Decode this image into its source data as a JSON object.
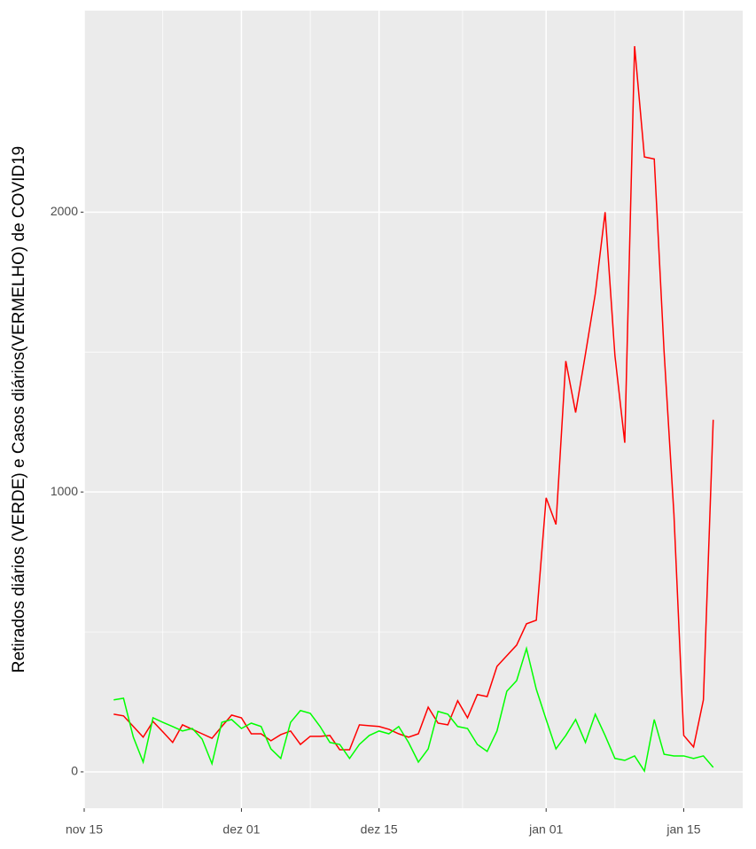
{
  "chart_data": {
    "type": "line",
    "y_label": "Retirados diários (VERDE) e Casos diários(VERMELHO) de COVID19",
    "x": [
      "11-18",
      "11-19",
      "11-20",
      "11-21",
      "11-22",
      "11-23",
      "11-24",
      "11-25",
      "11-26",
      "11-27",
      "11-28",
      "11-29",
      "11-30",
      "12-01",
      "12-02",
      "12-03",
      "12-04",
      "12-05",
      "12-06",
      "12-07",
      "12-08",
      "12-09",
      "12-10",
      "12-11",
      "12-12",
      "12-13",
      "12-14",
      "12-15",
      "12-16",
      "12-17",
      "12-18",
      "12-19",
      "12-20",
      "12-21",
      "12-22",
      "12-23",
      "12-24",
      "12-25",
      "12-26",
      "12-27",
      "12-28",
      "12-29",
      "12-30",
      "12-31",
      "01-01",
      "01-02",
      "01-03",
      "01-04",
      "01-05",
      "01-06",
      "01-07",
      "01-08",
      "01-09",
      "01-10",
      "01-11",
      "01-12",
      "01-13",
      "01-14",
      "01-15",
      "01-16",
      "01-17",
      "01-18"
    ],
    "series": [
      {
        "color": "#ff0000",
        "values": [
          206,
          200,
          162,
          124,
          180,
          143,
          105,
          168,
          152,
          136,
          120,
          162,
          203,
          193,
          136,
          136,
          111,
          133,
          146,
          98,
          127,
          127,
          130,
          79,
          79,
          168,
          165,
          162,
          152,
          136,
          124,
          136,
          231,
          174,
          168,
          254,
          193,
          276,
          269,
          377,
          415,
          453,
          529,
          542,
          979,
          884,
          1468,
          1284,
          1493,
          1708,
          2000,
          1487,
          1176,
          2593,
          2197,
          2190,
          1502,
          922,
          130,
          89,
          257,
          1258
        ]
      },
      {
        "color": "#00ff00",
        "values": [
          257,
          263,
          124,
          35,
          193,
          177,
          162,
          146,
          155,
          117,
          29,
          177,
          187,
          155,
          174,
          162,
          82,
          48,
          177,
          219,
          209,
          162,
          105,
          98,
          48,
          98,
          130,
          146,
          136,
          162,
          105,
          35,
          82,
          216,
          206,
          162,
          155,
          98,
          73,
          146,
          288,
          326,
          441,
          295,
          187,
          82,
          130,
          187,
          105,
          206,
          130,
          48,
          41,
          57,
          3,
          187,
          63,
          57,
          57,
          48,
          57,
          16
        ]
      }
    ],
    "xlim": [
      "11-15",
      "01-21"
    ],
    "xticks": [
      {
        "value": "11-15",
        "label": "nov 15"
      },
      {
        "value": "12-01",
        "label": "dez 01"
      },
      {
        "value": "12-15",
        "label": "dez 15"
      },
      {
        "value": "01-01",
        "label": "jan 01"
      },
      {
        "value": "01-15",
        "label": "jan 15"
      }
    ],
    "ylim": [
      -130,
      2720
    ],
    "yticks": [
      0,
      1000,
      2000
    ],
    "grid": true
  }
}
